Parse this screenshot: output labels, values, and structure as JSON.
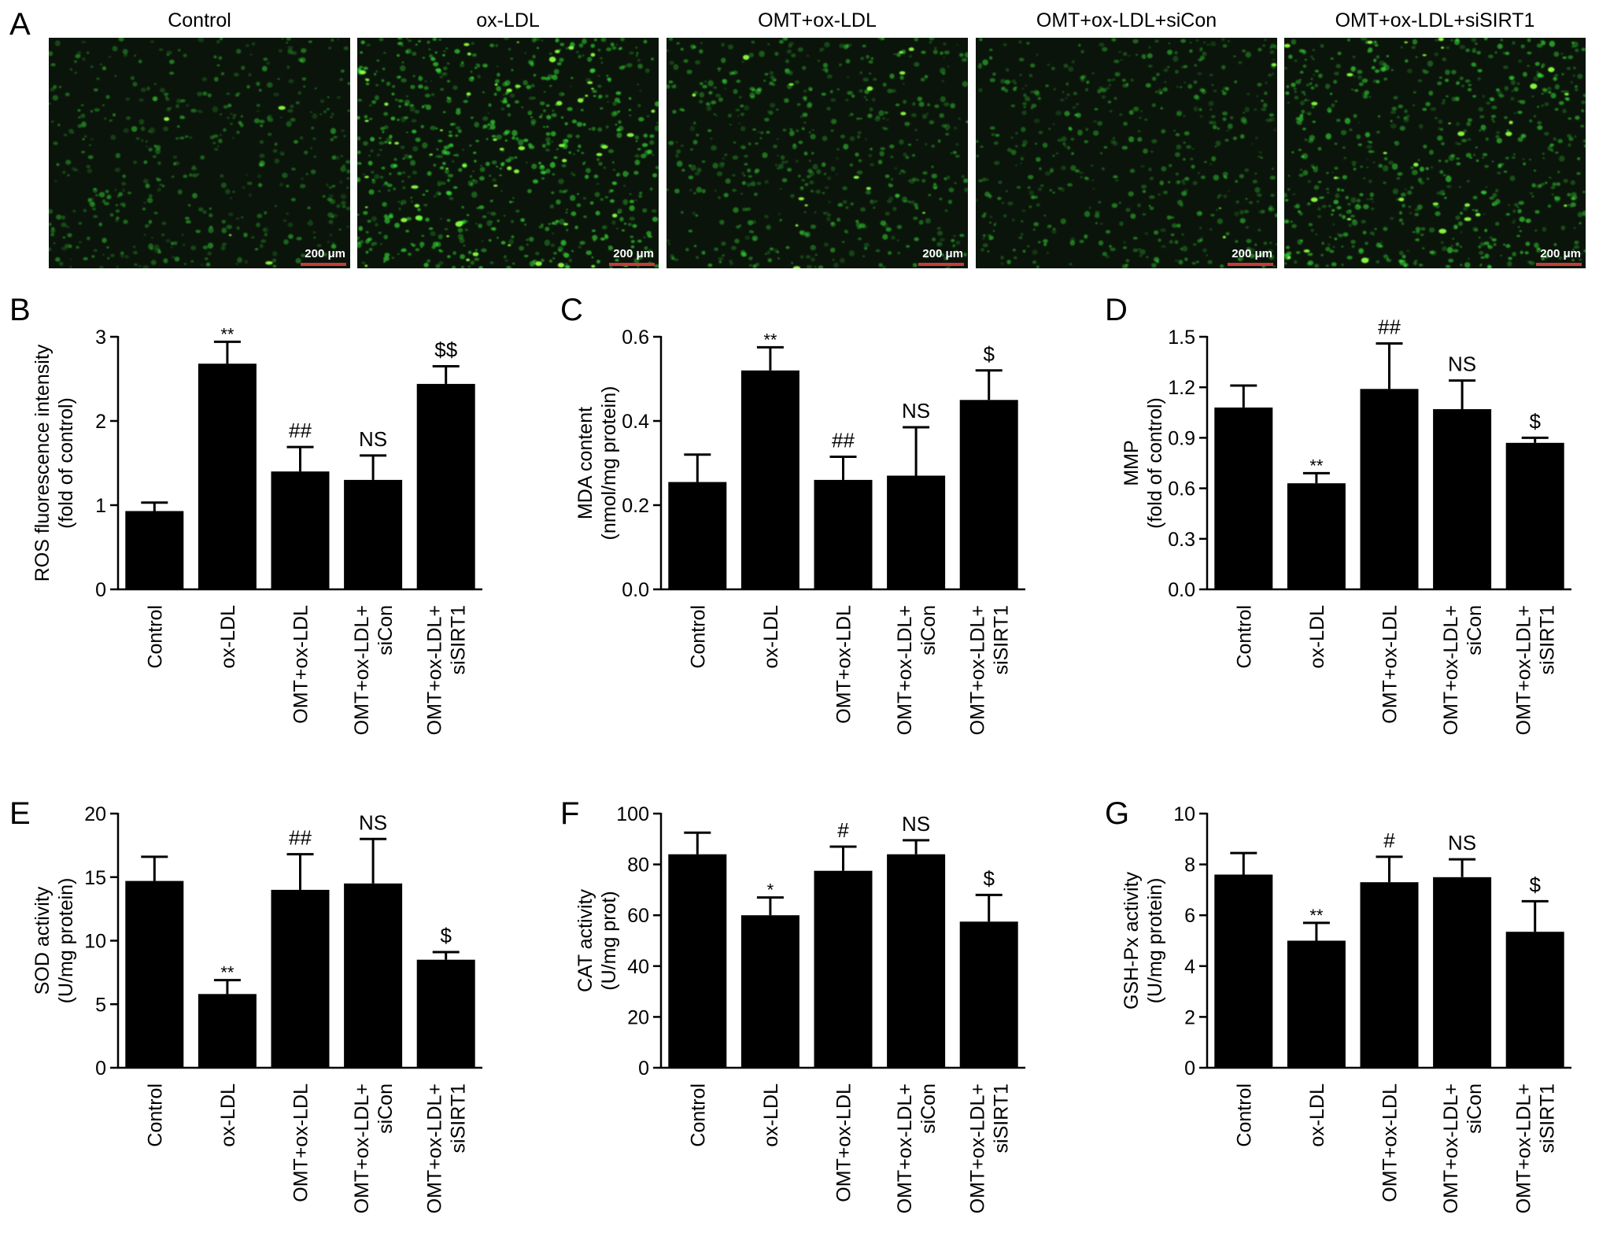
{
  "panel_a": {
    "letter": "A",
    "scale_label": "200 μm",
    "images": [
      {
        "title": "Control",
        "brightness": 0.35,
        "density": 0.55
      },
      {
        "title": "ox-LDL",
        "brightness": 1.0,
        "density": 0.9
      },
      {
        "title": "OMT+ox-LDL",
        "brightness": 0.45,
        "density": 0.65
      },
      {
        "title": "OMT+ox-LDL+siCon",
        "brightness": 0.42,
        "density": 0.6
      },
      {
        "title": "OMT+ox-LDL+siSIRT1",
        "brightness": 0.8,
        "density": 0.8
      }
    ],
    "colors": {
      "background": "#0b140b",
      "cell": "#3cff3c",
      "scale_bar": "#c83c3c"
    }
  },
  "chart_data": [
    {
      "panel": "B",
      "type": "bar",
      "categories": [
        "Control",
        "ox-LDL",
        "OMT+ox-LDL",
        "OMT+ox-LDL+\nsiCon",
        "OMT+ox-LDL+\nsiSIRT1"
      ],
      "values": [
        0.93,
        2.68,
        1.4,
        1.3,
        2.44
      ],
      "errors": [
        0.1,
        0.26,
        0.29,
        0.29,
        0.21
      ],
      "annotations": [
        "",
        "**",
        "##",
        "NS",
        "$$"
      ],
      "ylabel": "ROS fluorescence intensity\n(fold of control)",
      "ylim": [
        0,
        3
      ],
      "yticks": [
        "0",
        "1",
        "2",
        "3"
      ]
    },
    {
      "panel": "C",
      "type": "bar",
      "categories": [
        "Control",
        "ox-LDL",
        "OMT+ox-LDL",
        "OMT+ox-LDL+\nsiCon",
        "OMT+ox-LDL+\nsiSIRT1"
      ],
      "values": [
        0.255,
        0.52,
        0.26,
        0.27,
        0.45
      ],
      "errors": [
        0.065,
        0.055,
        0.055,
        0.115,
        0.07
      ],
      "annotations": [
        "",
        "**",
        "##",
        "NS",
        "$"
      ],
      "ylabel": "MDA content\n(nmol/mg protein)",
      "ylim": [
        0,
        0.6
      ],
      "yticks": [
        "0.0",
        "0.2",
        "0.4",
        "0.6"
      ]
    },
    {
      "panel": "D",
      "type": "bar",
      "categories": [
        "Control",
        "ox-LDL",
        "OMT+ox-LDL",
        "OMT+ox-LDL+\nsiCon",
        "OMT+ox-LDL+\nsiSIRT1"
      ],
      "values": [
        1.08,
        0.63,
        1.19,
        1.07,
        0.87
      ],
      "errors": [
        0.13,
        0.06,
        0.27,
        0.17,
        0.03
      ],
      "annotations": [
        "",
        "**",
        "##",
        "NS",
        "$"
      ],
      "ylabel": "MMP\n(fold of control)",
      "ylim": [
        0,
        1.5
      ],
      "yticks": [
        "0.0",
        "0.3",
        "0.6",
        "0.9",
        "1.2",
        "1.5"
      ]
    },
    {
      "panel": "E",
      "type": "bar",
      "categories": [
        "Control",
        "ox-LDL",
        "OMT+ox-LDL",
        "OMT+ox-LDL+\nsiCon",
        "OMT+ox-LDL+\nsiSIRT1"
      ],
      "values": [
        14.7,
        5.8,
        14.0,
        14.5,
        8.5
      ],
      "errors": [
        1.9,
        1.1,
        2.8,
        3.5,
        0.6
      ],
      "annotations": [
        "",
        "**",
        "##",
        "NS",
        "$"
      ],
      "ylabel": "SOD activity\n(U/mg protein)",
      "ylim": [
        0,
        20
      ],
      "yticks": [
        "0",
        "5",
        "10",
        "15",
        "20"
      ]
    },
    {
      "panel": "F",
      "type": "bar",
      "categories": [
        "Control",
        "ox-LDL",
        "OMT+ox-LDL",
        "OMT+ox-LDL+\nsiCon",
        "OMT+ox-LDL+\nsiSIRT1"
      ],
      "values": [
        84,
        60,
        77.5,
        84,
        57.5
      ],
      "errors": [
        8.5,
        7,
        9.5,
        5.5,
        10.5
      ],
      "annotations": [
        "",
        "*",
        "#",
        "NS",
        "$"
      ],
      "ylabel": "CAT activity\n(U/mg prot)",
      "ylim": [
        0,
        100
      ],
      "yticks": [
        "0",
        "20",
        "40",
        "60",
        "80",
        "100"
      ]
    },
    {
      "panel": "G",
      "type": "bar",
      "categories": [
        "Control",
        "ox-LDL",
        "OMT+ox-LDL",
        "OMT+ox-LDL+\nsiCon",
        "OMT+ox-LDL+\nsiSIRT1"
      ],
      "values": [
        7.6,
        5.0,
        7.3,
        7.5,
        5.35
      ],
      "errors": [
        0.85,
        0.7,
        1.0,
        0.7,
        1.2
      ],
      "annotations": [
        "",
        "**",
        "#",
        "NS",
        "$"
      ],
      "ylabel": "GSH-Px activity\n(U/mg protein)",
      "ylim": [
        0,
        10
      ],
      "yticks": [
        "0",
        "2",
        "4",
        "6",
        "8",
        "10"
      ]
    }
  ]
}
